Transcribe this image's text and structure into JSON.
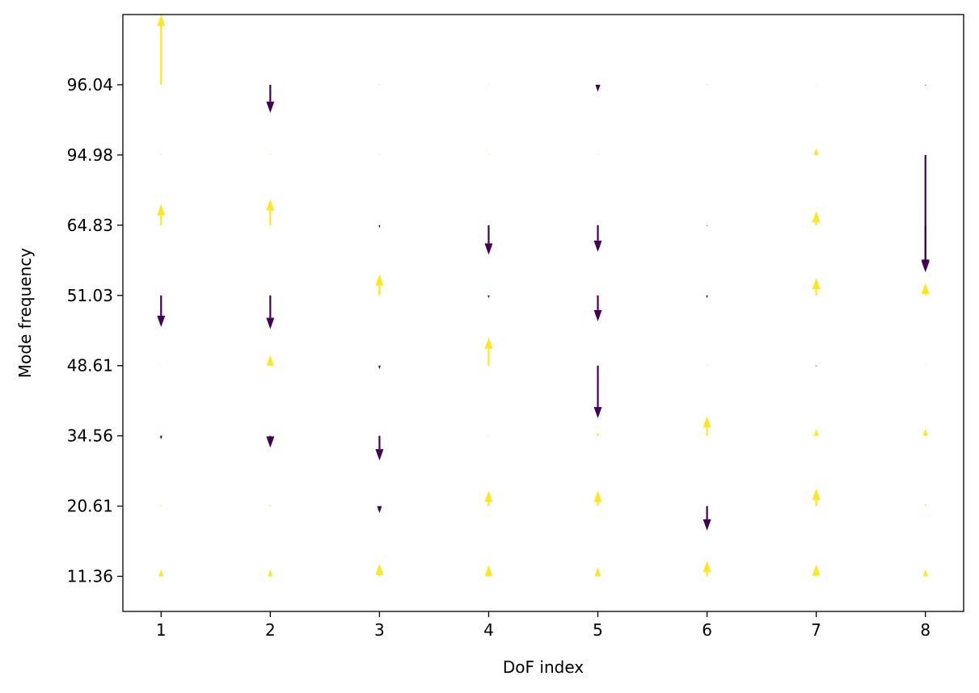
{
  "chart_data": {
    "type": "quiver",
    "title": "",
    "xlabel": "DoF index",
    "ylabel": "Mode frequency",
    "x": [
      1,
      2,
      3,
      4,
      5,
      6,
      7,
      8
    ],
    "y_ticks": [
      "11.36",
      "20.61",
      "34.56",
      "48.61",
      "51.03",
      "64.83",
      "94.98",
      "96.04"
    ],
    "xlim": [
      0.65,
      8.35
    ],
    "ylim": [
      0.5,
      9.0
    ],
    "grid": false,
    "legend": "none",
    "colors": {
      "positive": "#fde725",
      "negative": "#440154"
    },
    "series": [
      {
        "mode": 1,
        "vectors": [
          0.1,
          0.1,
          0.18,
          0.16,
          0.13,
          0.22,
          0.17,
          0.1
        ]
      },
      {
        "mode": 2,
        "vectors": [
          0.02,
          0.02,
          -0.1,
          0.22,
          0.22,
          -0.35,
          0.25,
          0.04
        ]
      },
      {
        "mode": 3,
        "vectors": [
          -0.05,
          -0.17,
          -0.35,
          0.01,
          0.05,
          0.28,
          0.1,
          0.1
        ]
      },
      {
        "mode": 4,
        "vectors": [
          0.005,
          0.15,
          -0.05,
          0.4,
          -0.75,
          0.01,
          -0.01,
          0.005
        ]
      },
      {
        "mode": 5,
        "vectors": [
          -0.45,
          -0.48,
          0.3,
          -0.04,
          -0.37,
          -0.04,
          0.25,
          0.18
        ]
      },
      {
        "mode": 6,
        "vectors": [
          0.3,
          0.37,
          -0.04,
          -0.42,
          -0.38,
          -0.01,
          0.2,
          -0.67
        ]
      },
      {
        "mode": 7,
        "vectors": [
          0.01,
          0.01,
          0.01,
          0.01,
          0.01,
          0.005,
          0.1,
          -1.65
        ]
      },
      {
        "mode": 8,
        "vectors": [
          1.0,
          -0.4,
          0.01,
          0.01,
          -0.1,
          0.01,
          0.01,
          -0.01
        ]
      }
    ]
  }
}
